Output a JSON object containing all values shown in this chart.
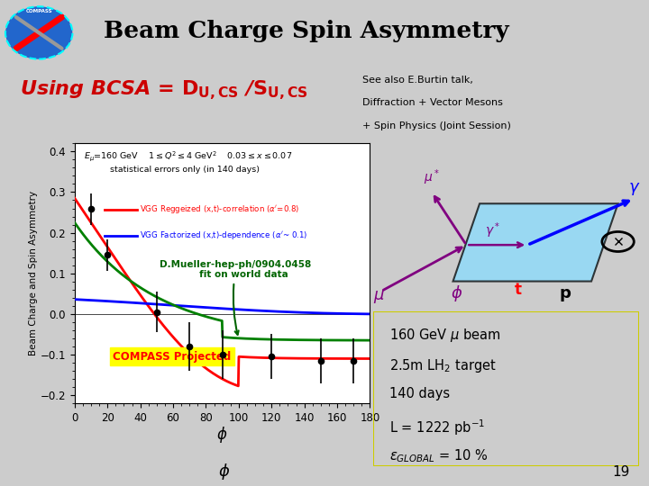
{
  "title": "Beam Charge Spin Asymmetry",
  "header_bg": "#aaaaaa",
  "body_bg": "#cccccc",
  "subtitle_color": "#cc0000",
  "ylabel": "Beam Charge and Spin Asymmetry",
  "xlabel": "φ",
  "legend1": "VGG Reggeized (x,t)-correlation (α’=0.8)",
  "legend2": "VGG Factorized (x,t)-dependence (α’~ 0.1)",
  "see_also_bg": "#d0d0f8",
  "see_also_lines": [
    "See also E.Burtin talk,",
    "Diffraction + Vector Mesons",
    "+ Spin Physics (Joint Session)"
  ],
  "info_bg": "#ffff88",
  "info_lines": [
    "160 GeV μ beam",
    "2.5m LH₂ target",
    "140 days",
    "L = 1222 pb⁻¹",
    "εGLOBAL = 10 %"
  ],
  "xlim": [
    0,
    180
  ],
  "ylim": [
    -0.22,
    0.42
  ],
  "xticks": [
    0,
    20,
    40,
    60,
    80,
    100,
    120,
    140,
    160,
    180
  ],
  "yticks": [
    -0.2,
    -0.1,
    0.0,
    0.1,
    0.2,
    0.3,
    0.4
  ],
  "data_points_x": [
    10,
    20,
    50,
    70,
    90,
    120,
    150,
    170
  ],
  "data_points_y": [
    0.258,
    0.145,
    0.005,
    -0.08,
    -0.1,
    -0.105,
    -0.115,
    -0.115
  ],
  "data_errors": [
    0.038,
    0.038,
    0.05,
    0.06,
    0.06,
    0.055,
    0.055,
    0.055
  ],
  "page_num": "19"
}
